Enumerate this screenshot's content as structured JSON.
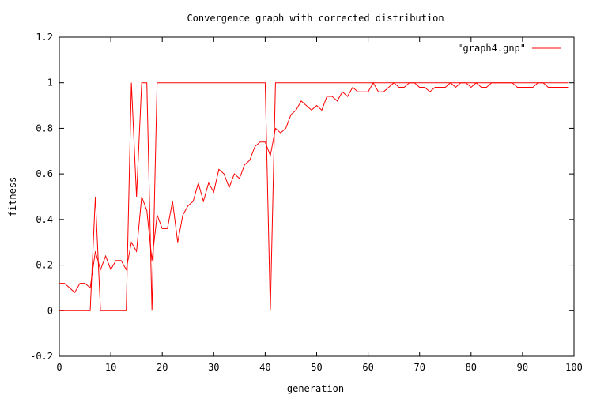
{
  "chart_data": {
    "type": "line",
    "title": "Convergence graph with corrected distribution",
    "xlabel": "generation",
    "ylabel": "fitness",
    "xlim": [
      0,
      100
    ],
    "ylim": [
      -0.2,
      1.2
    ],
    "x_ticks": [
      "0",
      "10",
      "20",
      "30",
      "40",
      "50",
      "60",
      "70",
      "80",
      "90",
      "100"
    ],
    "y_ticks": [
      "-0.2",
      "0",
      "0.2",
      "0.4",
      "0.6",
      "0.8",
      "1",
      "1.2"
    ],
    "x_tick_values": [
      0,
      10,
      20,
      30,
      40,
      50,
      60,
      70,
      80,
      90,
      100
    ],
    "y_tick_values": [
      -0.2,
      0,
      0.2,
      0.4,
      0.6,
      0.8,
      1,
      1.2
    ],
    "legend": {
      "placement": "top-right",
      "entries": [
        "\"graph4.gnp\""
      ]
    },
    "grid": false,
    "color": "#ff0000",
    "series": [
      {
        "name": "\"graph4.gnp\"",
        "points": [
          [
            0,
            0.12
          ],
          [
            1,
            0.12
          ],
          [
            2,
            0.1
          ],
          [
            3,
            0.08
          ],
          [
            4,
            0.12
          ],
          [
            5,
            0.12
          ],
          [
            6,
            0.1
          ],
          [
            7,
            0.26
          ],
          [
            8,
            0.18
          ],
          [
            9,
            0.24
          ],
          [
            10,
            0.18
          ],
          [
            11,
            0.22
          ],
          [
            12,
            0.22
          ],
          [
            13,
            0.18
          ],
          [
            14,
            0.3
          ],
          [
            15,
            0.26
          ],
          [
            16,
            0.5
          ],
          [
            17,
            0.44
          ],
          [
            18,
            0.22
          ],
          [
            19,
            0.42
          ],
          [
            20,
            0.36
          ],
          [
            21,
            0.36
          ],
          [
            22,
            0.48
          ],
          [
            23,
            0.3
          ],
          [
            24,
            0.42
          ],
          [
            25,
            0.46
          ],
          [
            26,
            0.48
          ],
          [
            27,
            0.56
          ],
          [
            28,
            0.48
          ],
          [
            29,
            0.56
          ],
          [
            30,
            0.52
          ],
          [
            31,
            0.62
          ],
          [
            32,
            0.6
          ],
          [
            33,
            0.54
          ],
          [
            34,
            0.6
          ],
          [
            35,
            0.58
          ],
          [
            36,
            0.64
          ],
          [
            37,
            0.66
          ],
          [
            38,
            0.72
          ],
          [
            39,
            0.74
          ],
          [
            40,
            0.74
          ],
          [
            41,
            0.68
          ],
          [
            42,
            0.8
          ],
          [
            43,
            0.78
          ],
          [
            44,
            0.8
          ],
          [
            45,
            0.86
          ],
          [
            46,
            0.88
          ],
          [
            47,
            0.92
          ],
          [
            48,
            0.9
          ],
          [
            49,
            0.88
          ],
          [
            50,
            0.9
          ],
          [
            51,
            0.88
          ],
          [
            52,
            0.94
          ],
          [
            53,
            0.94
          ],
          [
            54,
            0.92
          ],
          [
            55,
            0.96
          ],
          [
            56,
            0.94
          ],
          [
            57,
            0.98
          ],
          [
            58,
            0.96
          ],
          [
            59,
            0.96
          ],
          [
            60,
            0.96
          ],
          [
            61,
            1.0
          ],
          [
            62,
            0.96
          ],
          [
            63,
            0.96
          ],
          [
            64,
            0.98
          ],
          [
            65,
            1.0
          ],
          [
            66,
            0.98
          ],
          [
            67,
            0.98
          ],
          [
            68,
            1.0
          ],
          [
            69,
            1.0
          ],
          [
            70,
            0.98
          ],
          [
            71,
            0.98
          ],
          [
            72,
            0.96
          ],
          [
            73,
            0.98
          ],
          [
            74,
            0.98
          ],
          [
            75,
            0.98
          ],
          [
            76,
            1.0
          ],
          [
            77,
            0.98
          ],
          [
            78,
            1.0
          ],
          [
            79,
            1.0
          ],
          [
            80,
            0.98
          ],
          [
            81,
            1.0
          ],
          [
            82,
            0.98
          ],
          [
            83,
            0.98
          ],
          [
            84,
            1.0
          ],
          [
            85,
            1.0
          ],
          [
            86,
            1.0
          ],
          [
            87,
            1.0
          ],
          [
            88,
            1.0
          ],
          [
            89,
            0.98
          ],
          [
            90,
            0.98
          ],
          [
            91,
            0.98
          ],
          [
            92,
            0.98
          ],
          [
            93,
            1.0
          ],
          [
            94,
            1.0
          ],
          [
            95,
            0.98
          ],
          [
            96,
            0.98
          ],
          [
            97,
            0.98
          ],
          [
            98,
            0.98
          ],
          [
            99,
            0.98
          ]
        ]
      },
      {
        "name": "",
        "points": [
          [
            0,
            0
          ],
          [
            1,
            0
          ],
          [
            2,
            0
          ],
          [
            3,
            0
          ],
          [
            4,
            0
          ],
          [
            5,
            0
          ],
          [
            6,
            0
          ],
          [
            7,
            0.5
          ],
          [
            8,
            0
          ],
          [
            9,
            0
          ],
          [
            10,
            0
          ],
          [
            11,
            0
          ],
          [
            12,
            0
          ],
          [
            13,
            0
          ],
          [
            14,
            1
          ],
          [
            15,
            0.5
          ],
          [
            16,
            1
          ],
          [
            17,
            1
          ],
          [
            18,
            0
          ],
          [
            19,
            1
          ],
          [
            20,
            1
          ],
          [
            21,
            1
          ],
          [
            22,
            1
          ],
          [
            23,
            1
          ],
          [
            24,
            1
          ],
          [
            25,
            1
          ],
          [
            26,
            1
          ],
          [
            27,
            1
          ],
          [
            28,
            1
          ],
          [
            29,
            1
          ],
          [
            30,
            1
          ],
          [
            31,
            1
          ],
          [
            32,
            1
          ],
          [
            33,
            1
          ],
          [
            34,
            1
          ],
          [
            35,
            1
          ],
          [
            36,
            1
          ],
          [
            37,
            1
          ],
          [
            38,
            1
          ],
          [
            39,
            1
          ],
          [
            40,
            1
          ],
          [
            41,
            0
          ],
          [
            42,
            1
          ],
          [
            43,
            1
          ],
          [
            44,
            1
          ],
          [
            45,
            1
          ],
          [
            46,
            1
          ],
          [
            47,
            1
          ],
          [
            48,
            1
          ],
          [
            49,
            1
          ],
          [
            50,
            1
          ],
          [
            51,
            1
          ],
          [
            52,
            1
          ],
          [
            53,
            1
          ],
          [
            54,
            1
          ],
          [
            55,
            1
          ],
          [
            56,
            1
          ],
          [
            57,
            1
          ],
          [
            58,
            1
          ],
          [
            59,
            1
          ],
          [
            60,
            1
          ],
          [
            61,
            1
          ],
          [
            62,
            1
          ],
          [
            63,
            1
          ],
          [
            64,
            1
          ],
          [
            65,
            1
          ],
          [
            66,
            1
          ],
          [
            67,
            1
          ],
          [
            68,
            1
          ],
          [
            69,
            1
          ],
          [
            70,
            1
          ],
          [
            71,
            1
          ],
          [
            72,
            1
          ],
          [
            73,
            1
          ],
          [
            74,
            1
          ],
          [
            75,
            1
          ],
          [
            76,
            1
          ],
          [
            77,
            1
          ],
          [
            78,
            1
          ],
          [
            79,
            1
          ],
          [
            80,
            1
          ],
          [
            81,
            1
          ],
          [
            82,
            1
          ],
          [
            83,
            1
          ],
          [
            84,
            1
          ],
          [
            85,
            1
          ],
          [
            86,
            1
          ],
          [
            87,
            1
          ],
          [
            88,
            1
          ],
          [
            89,
            1
          ],
          [
            90,
            1
          ],
          [
            91,
            1
          ],
          [
            92,
            1
          ],
          [
            93,
            1
          ],
          [
            94,
            1
          ],
          [
            95,
            1
          ],
          [
            96,
            1
          ],
          [
            97,
            1
          ],
          [
            98,
            1
          ],
          [
            99,
            1
          ]
        ]
      }
    ]
  }
}
